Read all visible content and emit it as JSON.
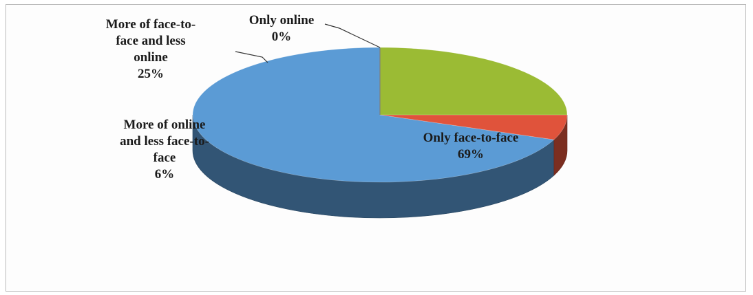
{
  "chart_data": {
    "type": "pie",
    "style": "3d",
    "categories": [
      "Only face-to-face",
      "More of online and less face-to-face",
      "More of face-to-face and less online",
      "Only online"
    ],
    "values": [
      69,
      6,
      25,
      0
    ],
    "value_suffix": "%",
    "colors": [
      "#5b9bd5",
      "#e0533b",
      "#9bbb34",
      "#7f7f7f"
    ],
    "labels": [
      {
        "lines": [
          "Only face-to-face"
        ],
        "value": "69%"
      },
      {
        "lines": [
          "More of online",
          "and less face-to-",
          "face"
        ],
        "value": "6%"
      },
      {
        "lines": [
          "More of face-to-",
          "face and less",
          "online"
        ],
        "value": "25%"
      },
      {
        "lines": [
          "Only online"
        ],
        "value": "0%"
      }
    ],
    "legend": "none"
  }
}
